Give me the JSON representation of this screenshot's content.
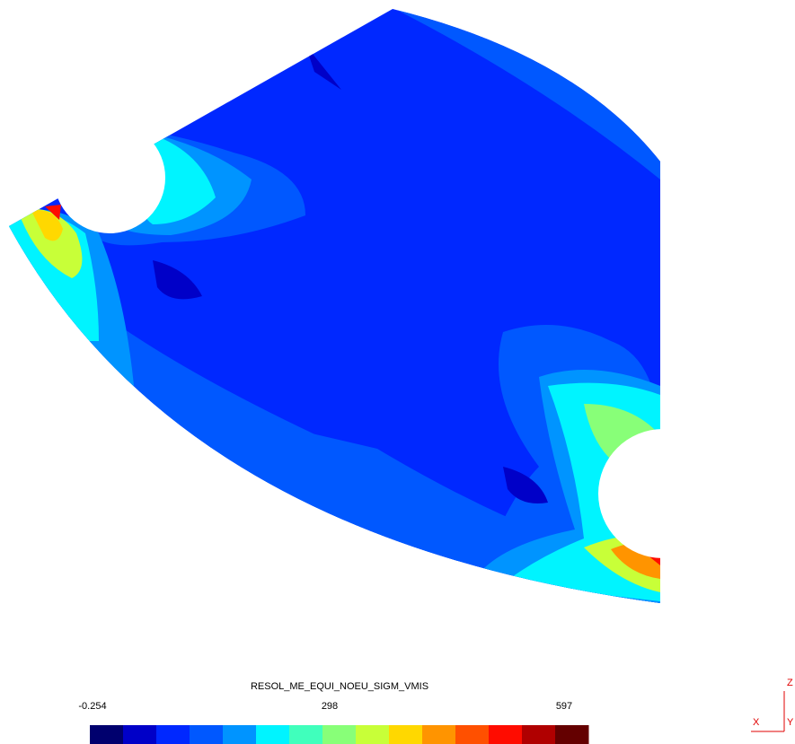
{
  "legend": {
    "title": "RESOL_ME_EQUI_NOEU_SIGM_VMIS",
    "min": -0.254,
    "mid": 298,
    "max": 597,
    "colors": [
      "#00006e",
      "#0000c8",
      "#0028ff",
      "#0058ff",
      "#0094ff",
      "#00f4ff",
      "#40ffbc",
      "#88ff78",
      "#c8ff38",
      "#ffd800",
      "#ff9400",
      "#ff5000",
      "#ff0c00",
      "#b00000",
      "#640000"
    ]
  },
  "axes": {
    "x": "X",
    "y": "Y",
    "z": "Z"
  }
}
